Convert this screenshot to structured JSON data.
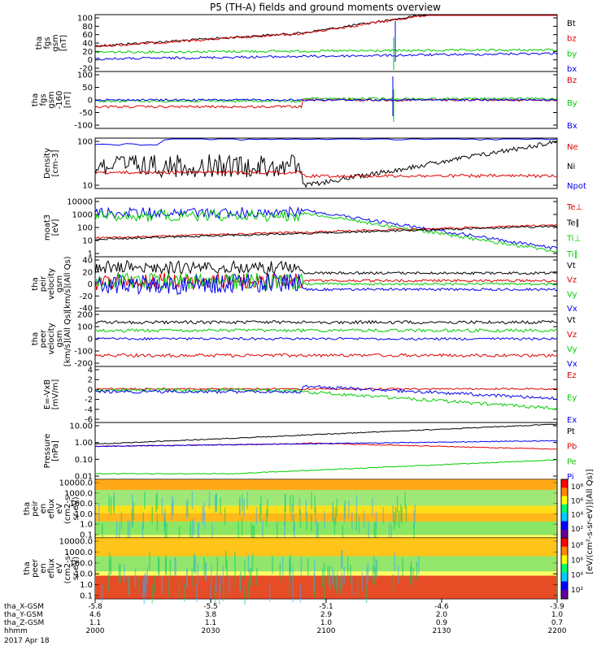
{
  "title": "P5 (TH-A) fields and ground moments overview",
  "colors": {
    "black": "#000000",
    "red": "#e00000",
    "green": "#00cc00",
    "blue": "#0000ee"
  },
  "chart_data": [
    {
      "type": "line",
      "ylabel": [
        "tha",
        "fgs",
        "gsm",
        "[nT]"
      ],
      "yticks": [
        "100",
        "80",
        "60",
        "40",
        "20",
        "0",
        "-20"
      ],
      "legend": [
        {
          "name": "Bt",
          "color": "black"
        },
        {
          "name": "bz",
          "color": "red"
        },
        {
          "name": "by",
          "color": "green"
        },
        {
          "name": "bx",
          "color": "blue"
        }
      ]
    },
    {
      "type": "line",
      "ylabel": [
        "tha",
        "fgs",
        "gsm",
        "-160",
        "[nT]"
      ],
      "yticks": [
        "100",
        "50",
        "0",
        "-50",
        "-100"
      ],
      "legend": [
        {
          "name": "Bz",
          "color": "red"
        },
        {
          "name": "By",
          "color": "green"
        },
        {
          "name": "Bx",
          "color": "blue"
        }
      ]
    },
    {
      "type": "line",
      "ylabel": [
        "Density",
        "[cm-3]"
      ],
      "yticks": [
        "100",
        "10"
      ],
      "legend": [
        {
          "name": "Ne",
          "color": "red"
        },
        {
          "name": "Ni",
          "color": "black"
        },
        {
          "name": "Npot",
          "color": "blue"
        }
      ]
    },
    {
      "type": "line",
      "ylabel": [
        "moat3",
        "[eV]"
      ],
      "yticks": [
        "10000",
        "1000",
        "100",
        "10",
        "1"
      ],
      "legend": [
        {
          "name": "Te⊥",
          "color": "red"
        },
        {
          "name": "Te∥",
          "color": "black"
        },
        {
          "name": "Ti⊥",
          "color": "green"
        },
        {
          "name": "Ti∥",
          "color": "green"
        }
      ]
    },
    {
      "type": "line",
      "ylabel": [
        "tha",
        "peir",
        "velocity",
        "gsm",
        "[km/s](All Qs)"
      ],
      "yticks": [
        "40",
        "20",
        "0",
        "-20",
        "-40"
      ],
      "legend": [
        {
          "name": "Vt",
          "color": "black"
        },
        {
          "name": "Vz",
          "color": "red"
        },
        {
          "name": "Vy",
          "color": "green"
        },
        {
          "name": "Vx",
          "color": "blue"
        }
      ]
    },
    {
      "type": "line",
      "ylabel": [
        "tha",
        "peer",
        "velocity",
        "gsm",
        "[km/s](All Qs)"
      ],
      "yticks": [
        "200",
        "100",
        "0",
        "-100",
        "-200"
      ],
      "legend": [
        {
          "name": "Vt",
          "color": "black"
        },
        {
          "name": "Vz",
          "color": "red"
        },
        {
          "name": "Vy",
          "color": "green"
        },
        {
          "name": "Vx",
          "color": "blue"
        }
      ]
    },
    {
      "type": "line",
      "ylabel": [
        "E=-VxB",
        "[mV/m]"
      ],
      "yticks": [
        "4",
        "2",
        "0",
        "-2",
        "-4",
        "-6"
      ],
      "legend": [
        {
          "name": "Ez",
          "color": "red"
        },
        {
          "name": "Ey",
          "color": "green"
        },
        {
          "name": "Ex",
          "color": "blue"
        }
      ]
    },
    {
      "type": "line",
      "ylabel": [
        "Pressure",
        "[nPa]"
      ],
      "yticks": [
        "10.00",
        "1.00",
        "0.10",
        "0.01"
      ],
      "legend": [
        {
          "name": "Pt",
          "color": "black"
        },
        {
          "name": "Pb",
          "color": "red"
        },
        {
          "name": "Pe",
          "color": "green"
        },
        {
          "name": "Pi",
          "color": "blue"
        }
      ]
    },
    {
      "type": "heatmap",
      "ylabel": [
        "tha",
        "peir",
        "en",
        "eflux",
        "eV",
        "(cm2-s-",
        "sr-eV)"
      ],
      "yticks": [
        "10000.0",
        "1000.0",
        "100.0",
        "10.0",
        "1.0",
        "0.1"
      ],
      "colorbar_ticks": [
        "10⁸",
        "10⁶",
        "10⁴",
        "10²"
      ]
    },
    {
      "type": "heatmap",
      "ylabel": [
        "tha",
        "peer",
        "en",
        "eflux",
        "eV",
        "(cm2-s-",
        "sr-eV)"
      ],
      "yticks": [
        "10000.0",
        "1000.0",
        "100.0",
        "10.0",
        "1.0",
        "0.1"
      ],
      "colorbar_ticks": [
        "10⁸",
        "10⁶",
        "10⁴",
        "10²"
      ],
      "colorbar_label": "[eV/(cm²-s-sr-eV)](All Qs)]"
    }
  ],
  "x_axis": {
    "rows": [
      {
        "label": "tha_X-GSM",
        "values": [
          "-5.8",
          "-5.5",
          "-5.1",
          "-4.6",
          "-3.9"
        ]
      },
      {
        "label": "tha_Y-GSM",
        "values": [
          "4.6",
          "3.8",
          "2.9",
          "2.0",
          "1.0"
        ]
      },
      {
        "label": "tha_Z-GSM",
        "values": [
          "1.1",
          "1.1",
          "1.0",
          "0.9",
          "0.7"
        ]
      },
      {
        "label": "hhmm",
        "values": [
          "2000",
          "2030",
          "2100",
          "2130",
          "2200"
        ]
      }
    ],
    "date": "2017 Apr 18"
  }
}
